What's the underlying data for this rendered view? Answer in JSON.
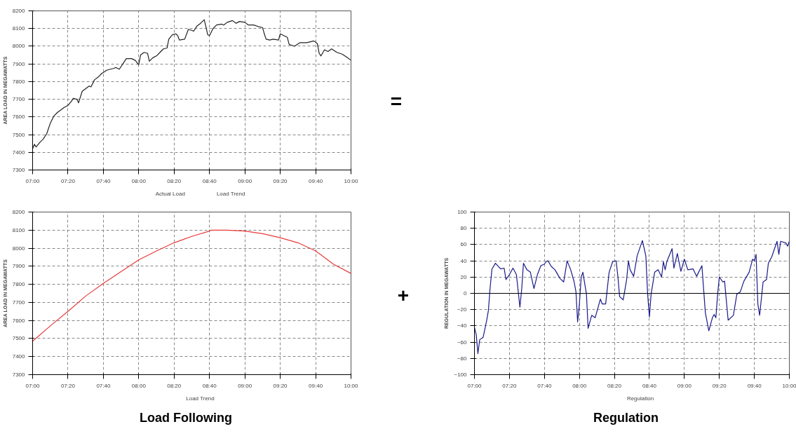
{
  "chart_data": [
    {
      "type": "line",
      "ylabel": "AREA LOAD IN MEGAWATTS",
      "xlim": [
        7,
        10
      ],
      "ylim": [
        7300,
        8200
      ],
      "xticks": [
        {
          "value": 7,
          "label": "07:00"
        },
        {
          "value": 7.333,
          "label": "07:20"
        },
        {
          "value": 7.667,
          "label": "07:40"
        },
        {
          "value": 8,
          "label": "08:00"
        },
        {
          "value": 8.333,
          "label": "08:20"
        },
        {
          "value": 8.667,
          "label": "08:40"
        },
        {
          "value": 9,
          "label": "09:00"
        },
        {
          "value": 9.333,
          "label": "09:20"
        },
        {
          "value": 9.667,
          "label": "09:40"
        },
        {
          "value": 10,
          "label": "10:00"
        }
      ],
      "yticks": [
        7300,
        7400,
        7500,
        7600,
        7700,
        7800,
        7900,
        8000,
        8100,
        8200
      ],
      "grid": true,
      "legend": "bottom",
      "annotations": [
        "Load Trend"
      ],
      "series": [
        {
          "name": "Actual Load",
          "color": "#222222",
          "x": [
            7,
            7.017,
            7.033,
            7.067,
            7.1,
            7.133,
            7.167,
            7.2,
            7.233,
            7.267,
            7.3,
            7.333,
            7.367,
            7.383,
            7.417,
            7.433,
            7.467,
            7.5,
            7.533,
            7.55,
            7.583,
            7.617,
            7.65,
            7.7,
            7.733,
            7.767,
            7.783,
            7.817,
            7.85,
            7.883,
            7.933,
            7.967,
            8,
            8.017,
            8.05,
            8.083,
            8.1,
            8.133,
            8.167,
            8.2,
            8.233,
            8.267,
            8.283,
            8.317,
            8.35,
            8.367,
            8.383,
            8.433,
            8.467,
            8.5,
            8.517,
            8.55,
            8.583,
            8.617,
            8.633,
            8.65,
            8.667,
            8.7,
            8.733,
            8.783,
            8.8,
            8.833,
            8.883,
            8.917,
            8.95,
            9,
            9.033,
            9.083,
            9.133,
            9.167,
            9.183,
            9.2,
            9.233,
            9.267,
            9.317,
            9.333,
            9.367,
            9.4,
            9.417,
            9.467,
            9.517,
            9.583,
            9.65,
            9.683,
            9.7,
            9.717,
            9.75,
            9.783,
            9.817,
            9.867,
            9.917,
            9.967,
            10
          ],
          "values": [
            7420,
            7445,
            7430,
            7455,
            7475,
            7505,
            7565,
            7605,
            7625,
            7640,
            7655,
            7665,
            7690,
            7705,
            7700,
            7680,
            7745,
            7760,
            7775,
            7770,
            7810,
            7825,
            7845,
            7865,
            7870,
            7875,
            7880,
            7870,
            7900,
            7930,
            7930,
            7920,
            7895,
            7950,
            7965,
            7960,
            7915,
            7935,
            7945,
            7965,
            7985,
            7990,
            8040,
            8065,
            8070,
            8060,
            8035,
            8040,
            8095,
            8090,
            8085,
            8115,
            8130,
            8150,
            8110,
            8065,
            8060,
            8100,
            8120,
            8125,
            8120,
            8135,
            8145,
            8130,
            8140,
            8135,
            8120,
            8120,
            8110,
            8105,
            8070,
            8040,
            8035,
            8040,
            8035,
            8070,
            8060,
            8050,
            8010,
            8000,
            8020,
            8020,
            8030,
            8015,
            7960,
            7945,
            7980,
            7970,
            7985,
            7965,
            7955,
            7935,
            7920
          ]
        }
      ]
    },
    {
      "type": "line",
      "title": "Load Following",
      "ylabel": "AREA LOAD IN MEGAWATTS",
      "xlim": [
        7,
        10
      ],
      "ylim": [
        7300,
        8200
      ],
      "xticks": [
        {
          "value": 7,
          "label": "07:00"
        },
        {
          "value": 7.333,
          "label": "07:20"
        },
        {
          "value": 7.667,
          "label": "07:40"
        },
        {
          "value": 8,
          "label": "08:00"
        },
        {
          "value": 8.333,
          "label": "08:20"
        },
        {
          "value": 8.667,
          "label": "08:40"
        },
        {
          "value": 9,
          "label": "09:00"
        },
        {
          "value": 9.333,
          "label": "09:20"
        },
        {
          "value": 9.667,
          "label": "09:40"
        },
        {
          "value": 10,
          "label": "10:00"
        }
      ],
      "yticks": [
        7300,
        7400,
        7500,
        7600,
        7700,
        7800,
        7900,
        8000,
        8100,
        8200
      ],
      "grid": true,
      "legend": "bottom",
      "series": [
        {
          "name": "Load Trend",
          "color": "#e83a3a",
          "x": [
            7,
            7.167,
            7.333,
            7.5,
            7.667,
            7.833,
            8,
            8.167,
            8.333,
            8.5,
            8.667,
            8.683,
            8.833,
            9,
            9.167,
            9.333,
            9.5,
            9.667,
            9.833,
            10
          ],
          "values": [
            7485,
            7570,
            7650,
            7735,
            7805,
            7870,
            7935,
            7985,
            8030,
            8065,
            8095,
            8100,
            8100,
            8095,
            8080,
            8058,
            8030,
            7985,
            7912,
            7860
          ]
        }
      ]
    },
    {
      "type": "line",
      "title": "Regulation",
      "ylabel": "REGULATION IN MEGAWATTS",
      "xlim": [
        7,
        10
      ],
      "ylim": [
        -100,
        100
      ],
      "xticks": [
        {
          "value": 7,
          "label": "07:00"
        },
        {
          "value": 7.333,
          "label": "07:20"
        },
        {
          "value": 7.667,
          "label": "07:40"
        },
        {
          "value": 8,
          "label": "08:00"
        },
        {
          "value": 8.333,
          "label": "08:20"
        },
        {
          "value": 8.667,
          "label": "08:40"
        },
        {
          "value": 9,
          "label": "09:00"
        },
        {
          "value": 9.333,
          "label": "09:20"
        },
        {
          "value": 9.667,
          "label": "09:40"
        },
        {
          "value": 10,
          "label": "10:00"
        }
      ],
      "yticks": [
        -100,
        -80,
        -60,
        -40,
        -20,
        0,
        20,
        40,
        60,
        80,
        100
      ],
      "grid": true,
      "legend": "bottom",
      "ref_lines": [
        {
          "axis": "y",
          "value": 0,
          "color": "#000000"
        }
      ],
      "series": [
        {
          "name": "Regulation",
          "color": "#1a1a8c",
          "x": [
            7,
            7.017,
            7.033,
            7.05,
            7.083,
            7.117,
            7.133,
            7.15,
            7.167,
            7.2,
            7.25,
            7.283,
            7.3,
            7.333,
            7.367,
            7.4,
            7.433,
            7.45,
            7.467,
            7.5,
            7.533,
            7.567,
            7.6,
            7.633,
            7.667,
            7.683,
            7.7,
            7.733,
            7.767,
            7.817,
            7.85,
            7.883,
            7.917,
            7.95,
            7.967,
            7.983,
            8,
            8.017,
            8.033,
            8.067,
            8.083,
            8.117,
            8.15,
            8.2,
            8.217,
            8.25,
            8.283,
            8.317,
            8.35,
            8.367,
            8.383,
            8.417,
            8.45,
            8.467,
            8.483,
            8.517,
            8.55,
            8.6,
            8.633,
            8.65,
            8.667,
            8.683,
            8.717,
            8.75,
            8.783,
            8.8,
            8.817,
            8.833,
            8.883,
            8.9,
            8.933,
            8.967,
            9,
            9.033,
            9.083,
            9.117,
            9.167,
            9.2,
            9.233,
            9.267,
            9.283,
            9.3,
            9.317,
            9.333,
            9.367,
            9.383,
            9.417,
            9.467,
            9.5,
            9.533,
            9.567,
            9.617,
            9.65,
            9.667,
            9.683,
            9.7,
            9.717,
            9.75,
            9.783,
            9.8,
            9.833,
            9.883,
            9.9,
            9.917,
            9.967,
            9.983,
            10
          ],
          "values": [
            -42,
            -51,
            -74,
            -57,
            -54,
            -33,
            -21,
            8,
            30,
            37,
            30,
            31,
            17,
            23,
            31,
            23,
            -17,
            5,
            37,
            29,
            26,
            6,
            23,
            34,
            36,
            39,
            40,
            33,
            29,
            18,
            14,
            40,
            29,
            14,
            2,
            -35,
            -13,
            20,
            26,
            -1,
            -43,
            -27,
            -30,
            -7,
            -13,
            -13,
            26,
            39,
            40,
            20,
            -4,
            -8,
            17,
            40,
            29,
            21,
            46,
            65,
            46,
            -1,
            -29,
            -1,
            26,
            29,
            20,
            39,
            29,
            39,
            55,
            31,
            49,
            27,
            42,
            29,
            30,
            21,
            34,
            -24,
            -46,
            -30,
            -26,
            -30,
            -1,
            20,
            14,
            15,
            -33,
            -27,
            -1,
            2,
            15,
            26,
            42,
            40,
            48,
            -13,
            -27,
            14,
            17,
            37,
            45,
            64,
            48,
            64,
            62,
            58,
            64
          ]
        }
      ]
    },
    {
      "type": "other",
      "annotations": [
        "=",
        "+"
      ]
    }
  ]
}
